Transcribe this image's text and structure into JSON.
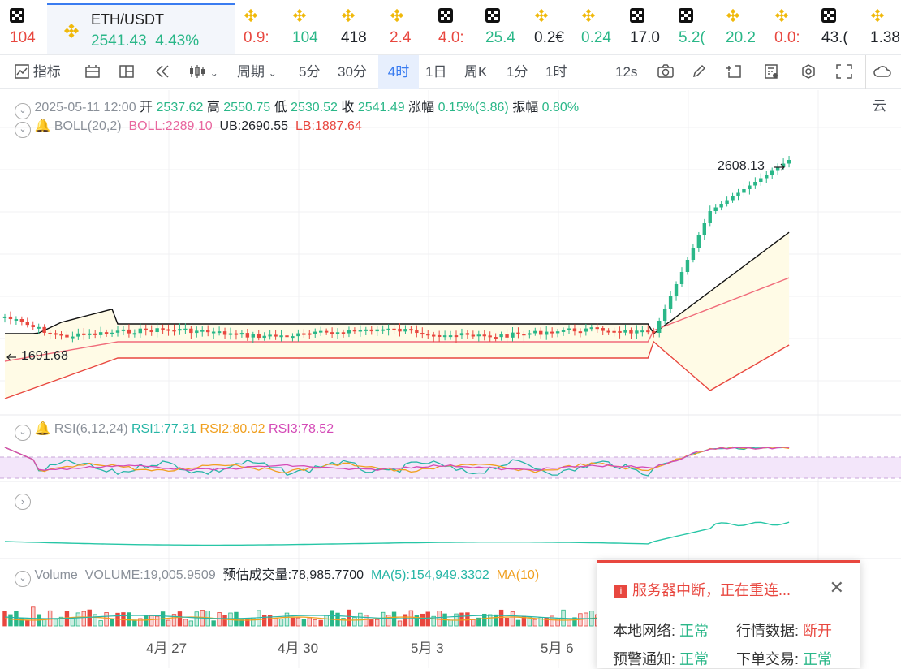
{
  "ticker": [
    {
      "val": "104",
      "cls": "dn",
      "ico": "okx"
    },
    {
      "pair": "ETH/USDT",
      "price": "2541.43",
      "change": "4.43%",
      "ico": "bnb",
      "selected": true
    },
    {
      "val": "0.9:",
      "cls": "dn",
      "ico": "bnb"
    },
    {
      "val": "104",
      "cls": "up",
      "ico": "bnb"
    },
    {
      "val": "418",
      "cls": "nt",
      "ico": "bnb"
    },
    {
      "val": "2.4",
      "cls": "dn",
      "ico": "bnb"
    },
    {
      "val": "4.0:",
      "cls": "dn",
      "ico": "okx"
    },
    {
      "val": "25.4",
      "cls": "up",
      "ico": "okx"
    },
    {
      "val": "0.2€",
      "cls": "nt",
      "ico": "bnb"
    },
    {
      "val": "0.24",
      "cls": "up",
      "ico": "bnb"
    },
    {
      "val": "17.0",
      "cls": "nt",
      "ico": "okx"
    },
    {
      "val": "5.2(",
      "cls": "up",
      "ico": "okx"
    },
    {
      "val": "20.2",
      "cls": "up",
      "ico": "bnb"
    },
    {
      "val": "0.0:",
      "cls": "dn",
      "ico": "bnb"
    },
    {
      "val": "43.(",
      "cls": "nt",
      "ico": "okx"
    },
    {
      "val": "1.38",
      "cls": "nt",
      "ico": "bnb"
    }
  ],
  "toolbar": {
    "indicators": "指标",
    "period": "周期",
    "intervals": [
      "5分",
      "30分",
      "4时",
      "1日",
      "周K",
      "1分",
      "1时"
    ],
    "active_interval": "4时",
    "refresh": "12s",
    "cloud": "云"
  },
  "ohlc": {
    "date": "2025-05-11 12:00",
    "open_label": "开",
    "open": "2537.62",
    "high_label": "高",
    "high": "2550.75",
    "low_label": "低",
    "low": "2530.52",
    "close_label": "收",
    "close": "2541.49",
    "chg_label": "涨幅",
    "chg": "0.15%(3.86)",
    "amp_label": "振幅",
    "amp": "0.80%"
  },
  "boll": {
    "name": "BOLL(20,2)",
    "mid": "BOLL:2289.10",
    "ub": "UB:2690.55",
    "lb": "LB:1887.64"
  },
  "price_marks": {
    "high": "2608.13",
    "low": "1691.68"
  },
  "rsi": {
    "name": "RSI(6,12,24)",
    "r1": "RSI1:77.31",
    "r2": "RSI2:80.02",
    "r3": "RSI3:78.52"
  },
  "volume": {
    "name": "Volume",
    "vol": "VOLUME:19,005.9509",
    "est": "预估成交量:78,985.7700",
    "ma5": "MA(5):154,949.3302",
    "ma10": "MA(10)"
  },
  "xaxis": [
    "4月 27",
    "4月 30",
    "5月 3",
    "5月 6"
  ],
  "popup": {
    "title": "服务器中断，正在重连...",
    "rows": [
      {
        "k": "本地网络:",
        "v": "正常",
        "cls": "green"
      },
      {
        "k": "行情数据:",
        "v": "断开",
        "cls": "red"
      },
      {
        "k": "预警通知:",
        "v": "正常",
        "cls": "green"
      },
      {
        "k": "下单交易:",
        "v": "正常",
        "cls": "green"
      }
    ]
  },
  "colors": {
    "up": "#2ab788",
    "down": "#e8473f",
    "accent": "#3a7cf0",
    "boll_mid": "#f06b7a",
    "band_fill": "#fffbe6"
  }
}
